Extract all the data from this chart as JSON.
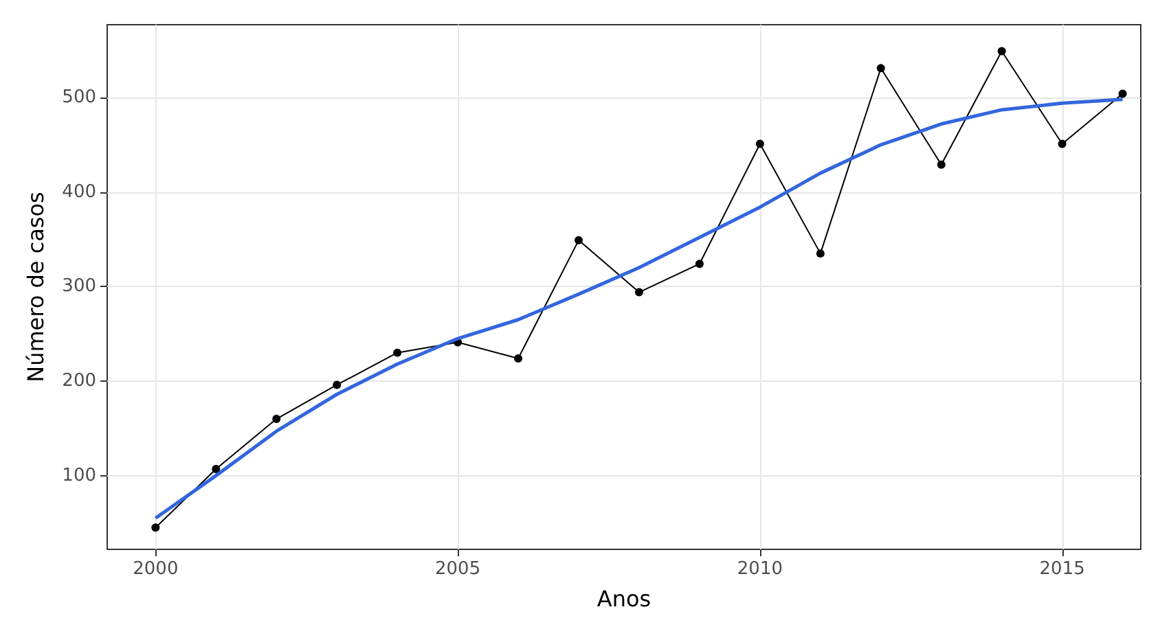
{
  "chart_data": {
    "type": "line",
    "xlabel": "Anos",
    "ylabel": "Número de casos",
    "x": [
      2000,
      2001,
      2002,
      2003,
      2004,
      2005,
      2006,
      2007,
      2008,
      2009,
      2010,
      2011,
      2012,
      2013,
      2014,
      2015,
      2016
    ],
    "series": [
      {
        "color": "#000000",
        "marker": "circle",
        "values": [
          45,
          107,
          160,
          196,
          230,
          241,
          224,
          349,
          294,
          324,
          451,
          335,
          531,
          429,
          549,
          451,
          504
        ]
      },
      {
        "color": "#3366dd",
        "marker": "none",
        "values": [
          55,
          100,
          147,
          186,
          218,
          245,
          265,
          292,
          320,
          352,
          384,
          420,
          450,
          472,
          487,
          494,
          498
        ]
      }
    ],
    "xlim": [
      1999.2,
      2016.3
    ],
    "xticks": [
      2000,
      2005,
      2010,
      2015
    ],
    "ylim": [
      22,
      577
    ],
    "yticks": [
      100,
      200,
      300,
      400,
      500
    ],
    "grid": true
  }
}
